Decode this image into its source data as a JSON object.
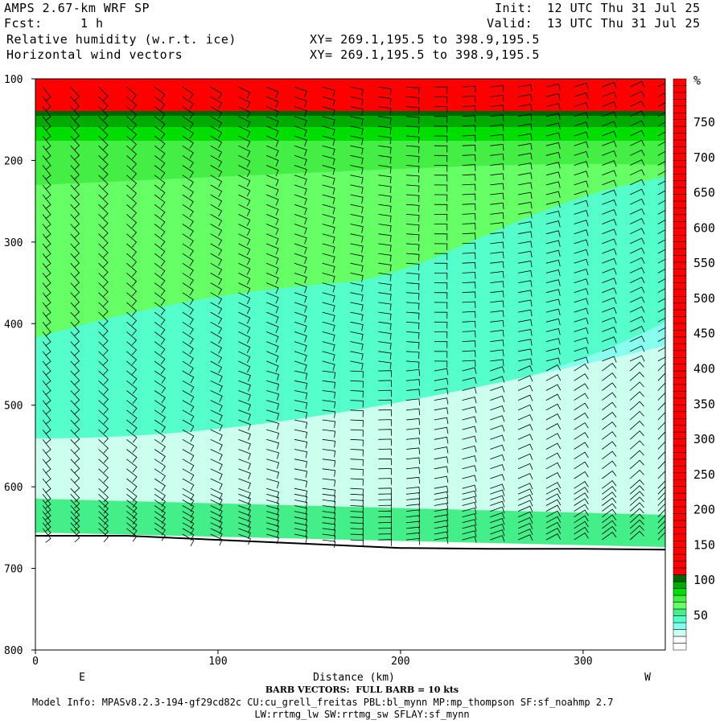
{
  "header": {
    "model": "AMPS 2.67-km WRF SP",
    "fcst_label": "Fcst:",
    "fcst_value": "1 h",
    "init_label": "Init:",
    "init_value": "12 UTC Thu 31 Jul 25",
    "valid_label": "Valid:",
    "valid_value": "13 UTC Thu 31 Jul 25",
    "field1": "Relative humidity (w.r.t. ice)",
    "field2": "Horizontal wind vectors",
    "xy1": "XY= 269.1,195.5 to 398.9,195.5",
    "xy2": "XY= 269.1,195.5 to 398.9,195.5"
  },
  "footer": {
    "barb_note": "BARB VECTORS:  FULL BARB = 10 kts",
    "model_info_1": "Model Info: MPASv8.2.3-194-gf29cd82c CU:cu_grell_freitas PBL:bl_mynn MP:mp_thompson SF:sf_noahmp 2.7",
    "model_info_2": "LW:rrtmg_lw SW:rrtmg_sw SFLAY:sf_mynn"
  },
  "colors": {
    "red": "#ff0000",
    "dark_green": "#006600",
    "green1": "#00aa00",
    "green2": "#00dd00",
    "green3": "#44ee44",
    "green4": "#66ff66",
    "cyan1": "#44ee88",
    "cyan2": "#55ffcc",
    "cyan3": "#88ffee",
    "cyan4": "#ccffee",
    "white": "#ffffff"
  },
  "chart_data": {
    "type": "heatmap",
    "title": "Relative humidity (w.r.t. ice)",
    "xlabel": "Distance (km)",
    "ylabel": "",
    "x_ticks": [
      0,
      100,
      200,
      300
    ],
    "y_ticks": [
      100,
      200,
      300,
      400,
      500,
      600,
      700,
      800
    ],
    "xlim": [
      0,
      345
    ],
    "ylim": [
      100,
      800
    ],
    "y_inverted": true,
    "endpoint_labels": [
      "E",
      "W"
    ],
    "colorbar": {
      "unit": "%",
      "ticks": [
        50,
        100,
        150,
        200,
        250,
        300,
        350,
        400,
        450,
        500,
        550,
        600,
        650,
        700,
        750
      ]
    },
    "surface_profile": [
      {
        "x": 0,
        "p": 660
      },
      {
        "x": 50,
        "p": 660
      },
      {
        "x": 100,
        "p": 665
      },
      {
        "x": 150,
        "p": 670
      },
      {
        "x": 200,
        "p": 675
      },
      {
        "x": 250,
        "p": 676
      },
      {
        "x": 300,
        "p": 676
      },
      {
        "x": 345,
        "p": 677
      }
    ]
  }
}
